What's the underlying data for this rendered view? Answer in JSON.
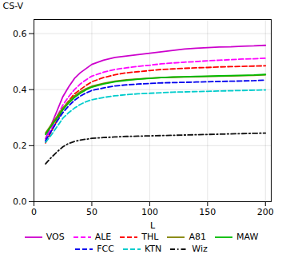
{
  "chart_data": {
    "type": "line",
    "xlabel": "L",
    "ylabel": "CS-V",
    "x": [
      10,
      15,
      20,
      25,
      30,
      35,
      40,
      45,
      50,
      60,
      70,
      80,
      90,
      100,
      110,
      120,
      130,
      140,
      150,
      160,
      170,
      180,
      190,
      200
    ],
    "series": [
      {
        "name": "VOS",
        "color": "#CC00CC",
        "line_style": "solid",
        "values": [
          0.225,
          0.275,
          0.325,
          0.375,
          0.41,
          0.44,
          0.46,
          0.475,
          0.49,
          0.505,
          0.515,
          0.52,
          0.525,
          0.53,
          0.535,
          0.54,
          0.545,
          0.548,
          0.55,
          0.552,
          0.553,
          0.555,
          0.556,
          0.558
        ]
      },
      {
        "name": "ALE",
        "color": "#FF00FF",
        "line_style": "dashed",
        "values": [
          0.215,
          0.26,
          0.305,
          0.345,
          0.375,
          0.4,
          0.42,
          0.435,
          0.448,
          0.462,
          0.472,
          0.478,
          0.483,
          0.487,
          0.492,
          0.495,
          0.498,
          0.5,
          0.503,
          0.505,
          0.507,
          0.509,
          0.51,
          0.512
        ]
      },
      {
        "name": "THL",
        "color": "#FF0000",
        "line_style": "dashed",
        "values": [
          0.21,
          0.25,
          0.29,
          0.33,
          0.36,
          0.385,
          0.4,
          0.415,
          0.428,
          0.443,
          0.453,
          0.46,
          0.464,
          0.468,
          0.472,
          0.474,
          0.476,
          0.478,
          0.479,
          0.481,
          0.482,
          0.483,
          0.484,
          0.485
        ]
      },
      {
        "name": "A81",
        "color": "#808000",
        "line_style": "solid",
        "values": [
          0.245,
          0.275,
          0.305,
          0.335,
          0.358,
          0.377,
          0.392,
          0.403,
          0.412,
          0.422,
          0.43,
          0.435,
          0.438,
          0.441,
          0.443,
          0.444,
          0.445,
          0.446,
          0.447,
          0.448,
          0.449,
          0.45,
          0.451,
          0.453
        ]
      },
      {
        "name": "MAW",
        "color": "#00BB00",
        "line_style": "solid",
        "values": [
          0.24,
          0.27,
          0.298,
          0.328,
          0.352,
          0.372,
          0.387,
          0.399,
          0.409,
          0.42,
          0.428,
          0.433,
          0.437,
          0.44,
          0.443,
          0.445,
          0.446,
          0.447,
          0.448,
          0.449,
          0.45,
          0.451,
          0.452,
          0.454
        ]
      },
      {
        "name": "FCC",
        "color": "#0000EE",
        "line_style": "dashed",
        "values": [
          0.218,
          0.252,
          0.287,
          0.318,
          0.342,
          0.362,
          0.377,
          0.388,
          0.397,
          0.406,
          0.413,
          0.417,
          0.42,
          0.422,
          0.424,
          0.425,
          0.426,
          0.427,
          0.428,
          0.429,
          0.43,
          0.431,
          0.432,
          0.434
        ]
      },
      {
        "name": "KTN",
        "color": "#00CCCC",
        "line_style": "dashed",
        "values": [
          0.212,
          0.238,
          0.268,
          0.298,
          0.318,
          0.334,
          0.347,
          0.357,
          0.364,
          0.372,
          0.378,
          0.382,
          0.385,
          0.387,
          0.389,
          0.391,
          0.392,
          0.393,
          0.394,
          0.395,
          0.396,
          0.397,
          0.398,
          0.399
        ]
      },
      {
        "name": "Wiz",
        "color": "#111111",
        "line_style": "dashdot",
        "values": [
          0.135,
          0.158,
          0.178,
          0.196,
          0.208,
          0.215,
          0.22,
          0.223,
          0.226,
          0.229,
          0.231,
          0.233,
          0.234,
          0.235,
          0.236,
          0.237,
          0.238,
          0.239,
          0.24,
          0.241,
          0.242,
          0.243,
          0.244,
          0.245
        ]
      }
    ],
    "xlim": [
      0,
      205
    ],
    "xticks": [
      0,
      50,
      100,
      150,
      200
    ],
    "ylim": [
      0,
      0.65
    ],
    "yticks": [
      {
        "value": 0,
        "label": "0.0"
      },
      0.2,
      0.4,
      0.6
    ],
    "grid": true,
    "legend": "bottom"
  }
}
